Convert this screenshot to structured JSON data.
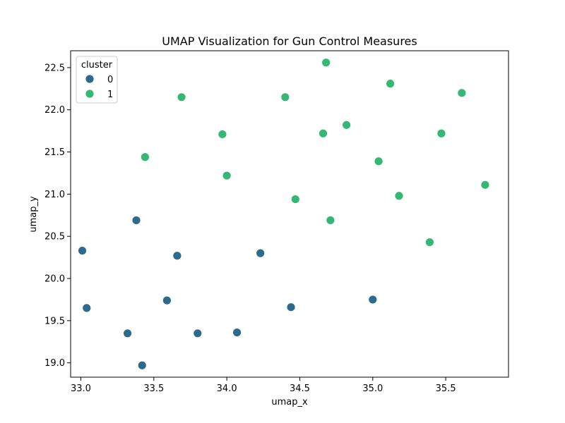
{
  "chart_data": {
    "type": "scatter",
    "title": "UMAP Visualization for Gun Control Measures",
    "xlabel": "umap_x",
    "ylabel": "umap_y",
    "xlim": [
      32.93,
      35.93
    ],
    "ylim": [
      18.83,
      22.7
    ],
    "xticks": [
      "33.0",
      "33.5",
      "34.0",
      "34.5",
      "35.0",
      "35.5"
    ],
    "yticks": [
      "19.0",
      "19.5",
      "20.0",
      "20.5",
      "21.0",
      "21.5",
      "22.0",
      "22.5"
    ],
    "grid": false,
    "legend": {
      "title": "cluster",
      "placement": "top-left"
    },
    "series": [
      {
        "name": "0",
        "color": "#2d6b8c",
        "points": [
          {
            "x": 33.01,
            "y": 20.33
          },
          {
            "x": 33.04,
            "y": 19.65
          },
          {
            "x": 33.32,
            "y": 19.35
          },
          {
            "x": 33.38,
            "y": 20.69
          },
          {
            "x": 33.42,
            "y": 18.97
          },
          {
            "x": 33.59,
            "y": 19.74
          },
          {
            "x": 33.66,
            "y": 20.27
          },
          {
            "x": 33.8,
            "y": 19.35
          },
          {
            "x": 34.07,
            "y": 19.36
          },
          {
            "x": 34.23,
            "y": 20.3
          },
          {
            "x": 34.44,
            "y": 19.66
          },
          {
            "x": 35.0,
            "y": 19.75
          }
        ]
      },
      {
        "name": "1",
        "color": "#35b874",
        "points": [
          {
            "x": 33.44,
            "y": 21.44
          },
          {
            "x": 33.69,
            "y": 22.15
          },
          {
            "x": 33.97,
            "y": 21.71
          },
          {
            "x": 34.0,
            "y": 21.22
          },
          {
            "x": 34.4,
            "y": 22.15
          },
          {
            "x": 34.47,
            "y": 20.94
          },
          {
            "x": 34.66,
            "y": 21.72
          },
          {
            "x": 34.68,
            "y": 22.56
          },
          {
            "x": 34.71,
            "y": 20.69
          },
          {
            "x": 34.82,
            "y": 21.82
          },
          {
            "x": 35.04,
            "y": 21.39
          },
          {
            "x": 35.12,
            "y": 22.31
          },
          {
            "x": 35.18,
            "y": 20.98
          },
          {
            "x": 35.39,
            "y": 20.43
          },
          {
            "x": 35.47,
            "y": 21.72
          },
          {
            "x": 35.61,
            "y": 22.2
          },
          {
            "x": 35.77,
            "y": 21.11
          }
        ]
      }
    ]
  }
}
